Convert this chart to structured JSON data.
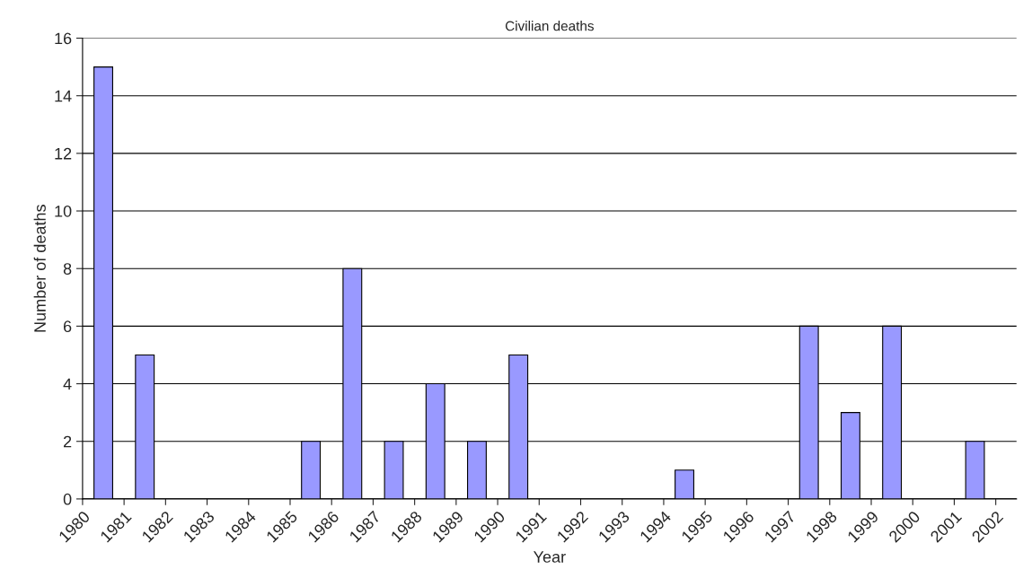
{
  "chart_data": {
    "type": "bar",
    "title": "Civilian deaths",
    "xlabel": "Year",
    "ylabel": "Number of deaths",
    "x": [
      1980.5,
      1981.5,
      1982.5,
      1983.5,
      1984.5,
      1985.5,
      1986.5,
      1987.5,
      1988.5,
      1989.5,
      1990.5,
      1991.5,
      1992.5,
      1993.5,
      1994.5,
      1995.5,
      1996.5,
      1997.5,
      1998.5,
      1999.5,
      2000.5,
      2001.5
    ],
    "values": [
      15,
      5,
      0,
      0,
      0,
      2,
      8,
      2,
      4,
      2,
      5,
      0,
      0,
      0,
      1,
      0,
      0,
      6,
      3,
      6,
      0,
      2
    ],
    "color": "#9999ff",
    "xlim": [
      1980,
      2002.5
    ],
    "xticks": [
      1980,
      1981,
      1982,
      1983,
      1984,
      1985,
      1986,
      1987,
      1988,
      1989,
      1990,
      1991,
      1992,
      1993,
      1994,
      1995,
      1996,
      1997,
      1998,
      1999,
      2000,
      2001,
      2002
    ],
    "ylim": [
      0,
      16
    ],
    "yticks": [
      0,
      2,
      4,
      6,
      8,
      10,
      12,
      14,
      16
    ],
    "grid": "y"
  }
}
